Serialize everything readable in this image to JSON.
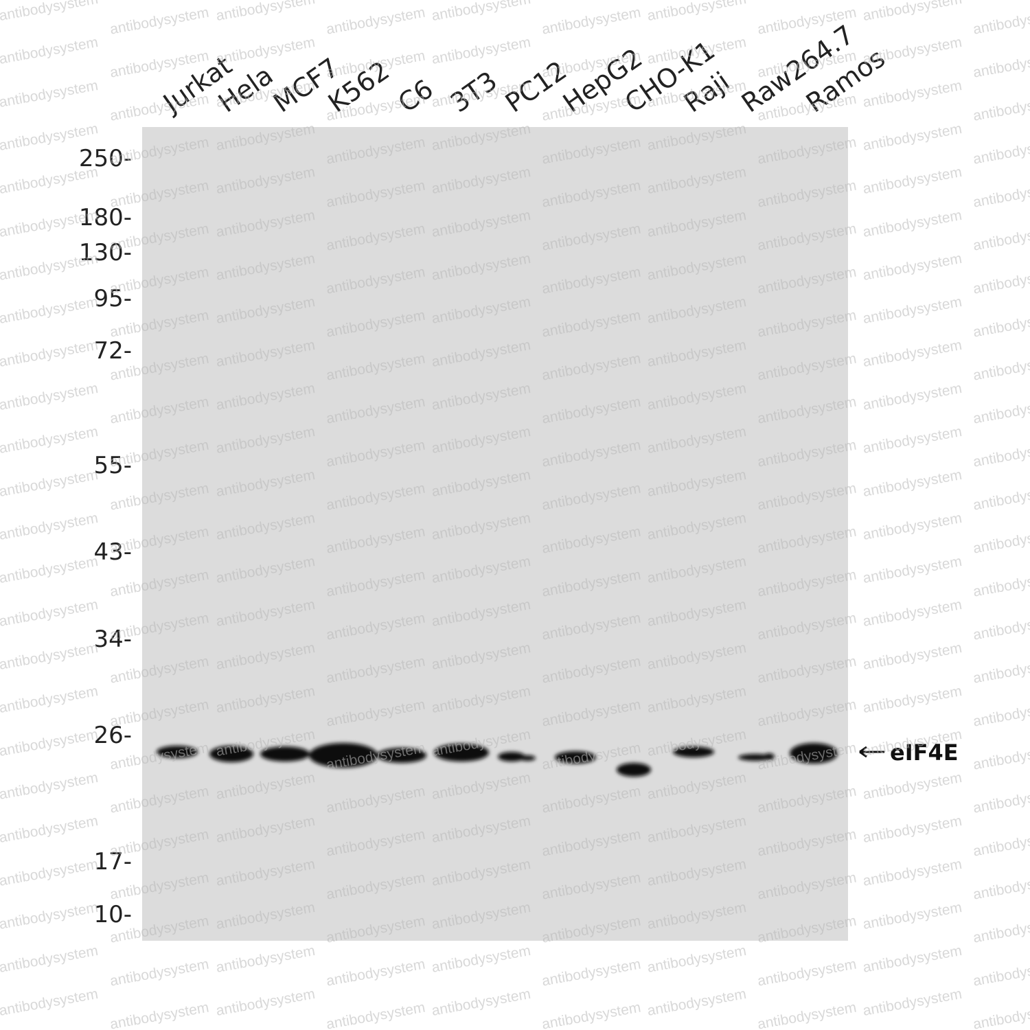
{
  "lanes": [
    "Jurkat",
    "Hela",
    "MCF7",
    "K562",
    "C6",
    "3T3",
    "PC12",
    "HepG2",
    "CHO-K1",
    "Raji",
    "Raw264.7",
    "Ramos"
  ],
  "markers": [
    "250-",
    "180-",
    "130-",
    "95-",
    "72-",
    "55-",
    "43-",
    "34-",
    "26-",
    "17-",
    "10-"
  ],
  "target": "eIF4E",
  "watermark": "antibodysystem"
}
